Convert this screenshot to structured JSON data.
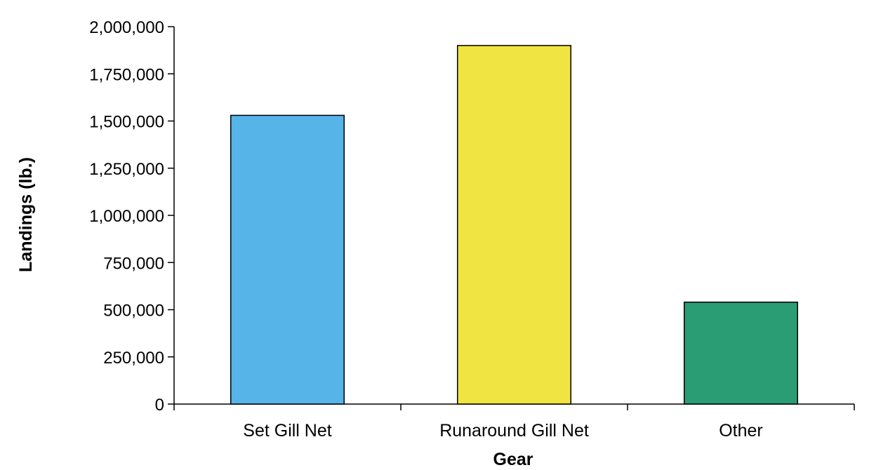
{
  "chart_data": {
    "type": "bar",
    "title": "",
    "xlabel": "Gear",
    "ylabel": "Landings (lb.)",
    "categories": [
      "Set Gill Net",
      "Runaround Gill Net",
      "Other"
    ],
    "values": [
      1530000,
      1900000,
      540000
    ],
    "colors": [
      "#56b4e9",
      "#f0e442",
      "#2a9d74"
    ],
    "ylim": [
      0,
      2000000
    ],
    "y_ticks": [
      0,
      250000,
      500000,
      750000,
      1000000,
      1250000,
      1500000,
      1750000,
      2000000
    ],
    "y_tick_labels": [
      "0",
      "250,000",
      "500,000",
      "750,000",
      "1,000,000",
      "1,250,000",
      "1,500,000",
      "1,750,000",
      "2,000,000"
    ],
    "grid": false,
    "legend": "none"
  }
}
